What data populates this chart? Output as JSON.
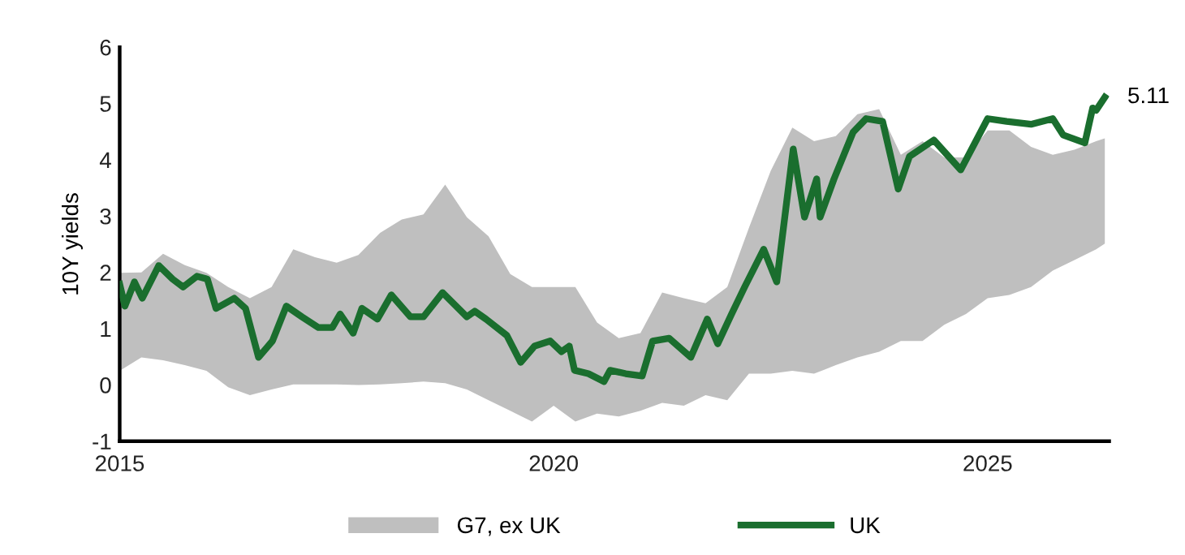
{
  "chart_data": {
    "type": "line",
    "ylabel": "10Y yields",
    "xlim": [
      2015,
      2026.4
    ],
    "xticks": [
      2015,
      2020,
      2025
    ],
    "ylim": [
      -1,
      6
    ],
    "yticks": [
      -1,
      0,
      1,
      2,
      3,
      4,
      5,
      6
    ],
    "grid": false,
    "legend": "bottom",
    "line_style": "solid",
    "marker": "none",
    "annotations": [
      {
        "text": "5.11",
        "x": 2026.35,
        "y": 5.11
      }
    ],
    "series": [
      {
        "name": "G7, ex UK",
        "type": "line",
        "color": "#bfbfbf",
        "values": [
          null,
          null,
          null,
          null,
          null,
          null,
          null,
          null,
          null,
          null,
          null,
          null,
          null,
          null,
          null,
          null,
          null,
          null,
          null,
          null,
          null,
          null,
          null,
          null,
          null,
          null,
          null,
          null,
          null,
          null,
          null,
          null,
          null,
          null,
          null,
          null,
          null,
          null,
          null,
          null,
          null,
          null,
          null,
          null,
          null,
          null,
          null
        ],
        "x": [
          2015.0,
          2015.25,
          2015.5,
          2015.75,
          2016.0,
          2016.25,
          2016.5,
          2016.75,
          2017.0,
          2017.25,
          2017.5,
          2017.75,
          2018.0,
          2018.25,
          2018.5,
          2018.75,
          2019.0,
          2019.25,
          2019.5,
          2019.75,
          2020.0,
          2020.25,
          2020.5,
          2020.75,
          2021.0,
          2021.25,
          2021.5,
          2021.75,
          2022.0,
          2022.25,
          2022.5,
          2022.75,
          2023.0,
          2023.25,
          2023.5,
          2023.75,
          2024.0,
          2024.25,
          2024.5,
          2024.75,
          2025.0,
          2025.25,
          2025.5,
          2025.75,
          2026.0,
          2026.25,
          2026.35
        ],
        "upper": [
          1.99,
          2.0,
          2.33,
          2.13,
          1.99,
          1.74,
          1.54,
          1.74,
          2.41,
          2.27,
          2.17,
          2.31,
          2.7,
          2.94,
          3.03,
          3.56,
          2.98,
          2.64,
          1.97,
          1.74,
          1.74,
          1.74,
          1.11,
          0.83,
          0.92,
          1.64,
          1.54,
          1.45,
          1.74,
          2.79,
          3.8,
          4.57,
          4.33,
          4.42,
          4.81,
          4.9,
          4.09,
          4.33,
          4.04,
          4.04,
          4.52,
          4.52,
          4.23,
          4.09,
          4.18,
          4.33,
          4.38
        ],
        "lower": [
          0.25,
          0.49,
          0.44,
          0.35,
          0.25,
          -0.04,
          -0.18,
          -0.08,
          0.01,
          0.01,
          0.01,
          0.0,
          0.01,
          0.03,
          0.06,
          0.03,
          -0.08,
          -0.27,
          -0.46,
          -0.65,
          -0.37,
          -0.65,
          -0.51,
          -0.56,
          -0.46,
          -0.32,
          -0.37,
          -0.18,
          -0.27,
          0.2,
          0.2,
          0.25,
          0.2,
          0.35,
          0.49,
          0.59,
          0.78,
          0.78,
          1.07,
          1.26,
          1.54,
          1.6,
          1.74,
          2.03,
          2.22,
          2.41,
          2.51
        ]
      },
      {
        "name": "UK",
        "type": "line",
        "color": "#1a6e2e",
        "x": [
          2015.0,
          2015.06,
          2015.17,
          2015.26,
          2015.45,
          2015.61,
          2015.73,
          2015.89,
          2016.01,
          2016.11,
          2016.32,
          2016.45,
          2016.6,
          2016.76,
          2016.92,
          2017.1,
          2017.29,
          2017.45,
          2017.54,
          2017.69,
          2017.79,
          2017.97,
          2018.13,
          2018.35,
          2018.5,
          2018.72,
          2019.0,
          2019.09,
          2019.22,
          2019.46,
          2019.62,
          2019.78,
          2019.96,
          2020.09,
          2020.18,
          2020.24,
          2020.4,
          2020.58,
          2020.65,
          2020.83,
          2021.02,
          2021.14,
          2021.33,
          2021.58,
          2021.77,
          2021.89,
          2022.05,
          2022.2,
          2022.42,
          2022.57,
          2022.76,
          2022.89,
          2023.03,
          2023.07,
          2023.23,
          2023.45,
          2023.6,
          2023.79,
          2023.97,
          2024.1,
          2024.38,
          2024.69,
          2025.0,
          2025.22,
          2025.5,
          2025.75,
          2025.87,
          2026.12,
          2026.21,
          2026.25,
          2026.35
        ],
        "values": [
          1.79,
          1.4,
          1.83,
          1.54,
          2.12,
          1.88,
          1.74,
          1.93,
          1.88,
          1.36,
          1.54,
          1.36,
          0.49,
          0.78,
          1.4,
          1.21,
          1.02,
          1.02,
          1.26,
          0.92,
          1.36,
          1.17,
          1.6,
          1.21,
          1.21,
          1.64,
          1.21,
          1.31,
          1.17,
          0.88,
          0.4,
          0.69,
          0.78,
          0.59,
          0.69,
          0.26,
          0.2,
          0.06,
          0.26,
          0.2,
          0.16,
          0.78,
          0.83,
          0.49,
          1.17,
          0.73,
          1.26,
          1.74,
          2.41,
          1.83,
          4.19,
          2.98,
          3.66,
          2.98,
          3.66,
          4.49,
          4.73,
          4.68,
          3.48,
          4.06,
          4.35,
          3.82,
          4.73,
          4.68,
          4.63,
          4.73,
          4.44,
          4.3,
          4.92,
          4.88,
          5.11
        ]
      }
    ]
  }
}
